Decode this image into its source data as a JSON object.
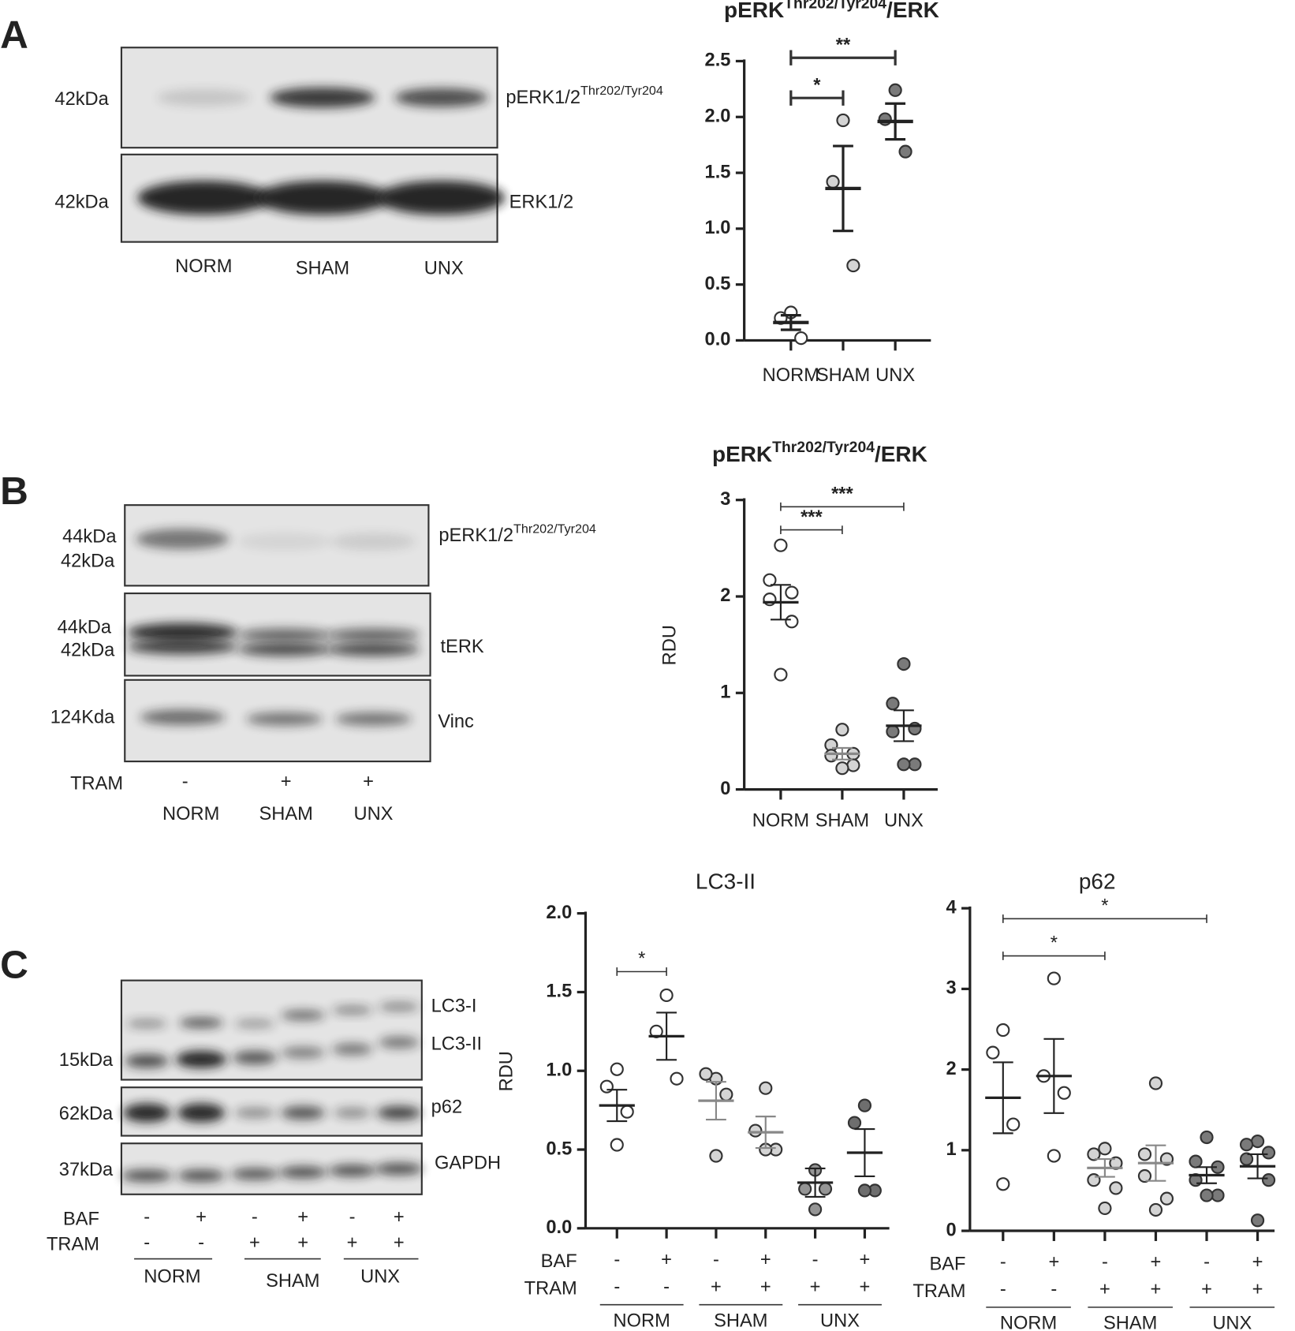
{
  "panels": [
    "A",
    "B",
    "C"
  ],
  "blots": {
    "a": {
      "left": [
        "42kDa",
        "42kDa"
      ],
      "right": [
        [
          "pERK1/2",
          "Thr202/Tyr204"
        ],
        "ERK1/2"
      ],
      "lanes": [
        "NORM",
        "SHAM",
        "UNX"
      ]
    },
    "b": {
      "left": [
        "44kDa",
        "42kDa",
        "44kDa",
        "42kDa",
        "124Kda"
      ],
      "right": [
        [
          "pERK1/2",
          "Thr202/Tyr204"
        ],
        "tERK",
        "Vinc"
      ],
      "row_label": "TRAM",
      "row": [
        "-",
        "+",
        "+"
      ],
      "lanes": [
        "NORM",
        "SHAM",
        "UNX"
      ]
    },
    "c": {
      "left": [
        "15kDa",
        "62kDa",
        "37kDa"
      ],
      "right": [
        "LC3-I",
        "LC3-II",
        "p62",
        "GAPDH"
      ],
      "rows": [
        {
          "label": "BAF",
          "values": [
            "-",
            "+",
            "-",
            "+",
            "-",
            "+"
          ]
        },
        {
          "label": "TRAM",
          "values": [
            "-",
            "-",
            "+",
            "+",
            "+",
            "+"
          ]
        }
      ],
      "groups": [
        "NORM",
        "SHAM",
        "UNX"
      ]
    }
  },
  "chart_data": [
    {
      "type": "dot",
      "title": [
        "pERK",
        "Thr202/Tyr204",
        "/ERK"
      ],
      "categories": [
        "NORM",
        "SHAM",
        "UNX"
      ],
      "ylim": [
        0,
        2.5
      ],
      "yticks": [
        {
          "value": 0,
          "label": "0.0"
        },
        {
          "value": 0.5,
          "label": "0.5"
        },
        {
          "value": 1,
          "label": "1.0"
        },
        {
          "value": 1.5,
          "label": "1.5"
        },
        {
          "value": 2,
          "label": "2.0"
        },
        {
          "value": 2.5,
          "label": "2.5"
        }
      ],
      "groups": [
        {
          "color": "#ffffff",
          "values": [
            0.25,
            0.2,
            0.02
          ],
          "mean": 0.16,
          "sem": 0.065
        },
        {
          "color": "#d4d4d4",
          "values": [
            1.97,
            1.42,
            0.67
          ],
          "mean": 1.36,
          "sem": 0.38
        },
        {
          "color": "#7a7a7a",
          "values": [
            2.24,
            1.98,
            1.69
          ],
          "mean": 1.96,
          "sem": 0.16
        }
      ],
      "significance": [
        {
          "text": "*",
          "from": 0,
          "to": 1,
          "y": 2.17
        },
        {
          "text": "**",
          "from": 0,
          "to": 2,
          "y": 2.53
        }
      ]
    },
    {
      "type": "dot",
      "title": [
        "pERK",
        "Thr202/Tyr204",
        "/ERK"
      ],
      "ylabel": "RDU",
      "categories": [
        "NORM",
        "SHAM",
        "UNX"
      ],
      "ylim": [
        0,
        3
      ],
      "yticks": [
        0,
        1,
        2,
        3
      ],
      "groups": [
        {
          "color": "#ffffff",
          "values": [
            2.53,
            2.17,
            2.04,
            1.97,
            1.74,
            1.19
          ],
          "mean": 1.94,
          "sem": 0.18
        },
        {
          "color": "#d4d4d4",
          "values": [
            0.62,
            0.46,
            0.37,
            0.35,
            0.25,
            0.22
          ],
          "mean": 0.37,
          "sem": 0.06
        },
        {
          "color": "#7a7a7a",
          "values": [
            1.3,
            0.89,
            0.63,
            0.6,
            0.26,
            0.26
          ],
          "mean": 0.66,
          "sem": 0.16
        }
      ],
      "significance": [
        {
          "text": "***",
          "from": 0,
          "to": 1,
          "y": 2.69
        },
        {
          "text": "***",
          "from": 0,
          "to": 2,
          "y": 2.93
        }
      ]
    },
    {
      "type": "dot",
      "title": "LC3-II",
      "ylabel": "RDU",
      "rows": [
        {
          "label": "BAF",
          "values": [
            "-",
            "+",
            "-",
            "+",
            "-",
            "+"
          ]
        },
        {
          "label": "TRAM",
          "values": [
            "-",
            "-",
            "+",
            "+",
            "+",
            "+"
          ]
        }
      ],
      "group_labels": [
        "NORM",
        "SHAM",
        "UNX"
      ],
      "ylim": [
        0,
        2
      ],
      "yticks": [
        {
          "value": 0,
          "label": "0.0"
        },
        {
          "value": 0.5,
          "label": "0.5"
        },
        {
          "value": 1,
          "label": "1.0"
        },
        {
          "value": 1.5,
          "label": "1.5"
        },
        {
          "value": 2,
          "label": "2.0"
        }
      ],
      "groups": [
        {
          "color": "#ffffff",
          "values": [
            1.01,
            0.9,
            0.74,
            0.53
          ],
          "mean": 0.78,
          "sem": 0.1
        },
        {
          "color": "#ffffff",
          "values": [
            1.48,
            1.25,
            0.95
          ],
          "mean": 1.22,
          "sem": 0.15
        },
        {
          "color": "#d4d4d4",
          "values": [
            0.95,
            0.98,
            0.85,
            0.46
          ],
          "mean": 0.81,
          "sem": 0.12
        },
        {
          "color": "#d4d4d4",
          "values": [
            0.89,
            0.62,
            0.5,
            0.5
          ],
          "mean": 0.61,
          "sem": 0.1
        },
        {
          "color": "#959595",
          "values": [
            0.37,
            0.25,
            0.25,
            0.12
          ],
          "mean": 0.29,
          "sem": 0.09
        },
        {
          "color": "#6e6e6e",
          "values": [
            0.78,
            0.67,
            0.24,
            0.24
          ],
          "mean": 0.48,
          "sem": 0.15
        }
      ],
      "significance": [
        {
          "text": "*",
          "from": 0,
          "to": 1,
          "y": 1.63
        }
      ]
    },
    {
      "type": "dot",
      "title": "p62",
      "rows": [
        {
          "label": "BAF",
          "values": [
            "-",
            "+",
            "-",
            "+",
            "-",
            "+"
          ]
        },
        {
          "label": "TRAM",
          "values": [
            "-",
            "-",
            "+",
            "+",
            "+",
            "+"
          ]
        }
      ],
      "group_labels": [
        "NORM",
        "SHAM",
        "UNX"
      ],
      "ylim": [
        0,
        4
      ],
      "yticks": [
        0,
        1,
        2,
        3,
        4
      ],
      "groups": [
        {
          "color": "#ffffff",
          "values": [
            2.49,
            2.21,
            1.32,
            0.58
          ],
          "mean": 1.65,
          "sem": 0.44
        },
        {
          "color": "#ffffff",
          "values": [
            3.13,
            1.92,
            1.71,
            0.93
          ],
          "mean": 1.92,
          "sem": 0.46
        },
        {
          "color": "#d4d4d4",
          "values": [
            1.02,
            0.95,
            0.84,
            0.63,
            0.53,
            0.28
          ],
          "mean": 0.78,
          "sem": 0.11
        },
        {
          "color": "#d4d4d4",
          "values": [
            1.83,
            0.95,
            0.89,
            0.68,
            0.4,
            0.26
          ],
          "mean": 0.84,
          "sem": 0.22
        },
        {
          "color": "#7a7a7a",
          "values": [
            1.16,
            0.86,
            0.79,
            0.63,
            0.44,
            0.44
          ],
          "mean": 0.69,
          "sem": 0.1
        },
        {
          "color": "#7a7a7a",
          "values": [
            1.11,
            1.07,
            0.97,
            0.89,
            0.63,
            0.13
          ],
          "mean": 0.8,
          "sem": 0.15
        }
      ],
      "significance": [
        {
          "text": "*",
          "from": 0,
          "to": 2,
          "y": 3.41
        },
        {
          "text": "*",
          "from": 0,
          "to": 4,
          "y": 3.87
        }
      ]
    }
  ]
}
